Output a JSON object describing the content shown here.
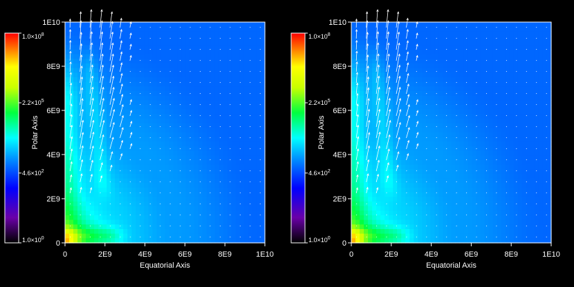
{
  "chart_data": [
    {
      "type": "heatmap",
      "title": "",
      "xlabel": "Equatorial Axis",
      "ylabel": "Polar Axis",
      "xlim": [
        0,
        10000000000
      ],
      "ylim": [
        0,
        10000000000
      ],
      "x_ticks": [
        {
          "value": 0,
          "label": "0"
        },
        {
          "value": 2000000000,
          "label": "2E9"
        },
        {
          "value": 4000000000,
          "label": "4E9"
        },
        {
          "value": 6000000000,
          "label": "6E9"
        },
        {
          "value": 8000000000,
          "label": "8E9"
        },
        {
          "value": 10000000000,
          "label": "1E10"
        }
      ],
      "y_ticks": [
        {
          "value": 0,
          "label": "0"
        },
        {
          "value": 2000000000,
          "label": "2E9"
        },
        {
          "value": 4000000000,
          "label": "4E9"
        },
        {
          "value": 6000000000,
          "label": "6E9"
        },
        {
          "value": 8000000000,
          "label": "8E9"
        },
        {
          "value": 10000000000,
          "label": "1E10"
        }
      ],
      "colorbar": {
        "scale": "log",
        "range": [
          1,
          100000000
        ],
        "ticks": [
          {
            "value": 100000000,
            "mant": "1.0×10",
            "exp": "8"
          },
          {
            "value": 220000,
            "mant": "2.2×10",
            "exp": "5"
          },
          {
            "value": 460,
            "mant": "4.6×10",
            "exp": "2"
          },
          {
            "value": 1,
            "mant": "1.0×10",
            "exp": "0"
          }
        ]
      },
      "vector_field": true,
      "grid": false
    },
    {
      "type": "heatmap",
      "title": "",
      "xlabel": "Equatorial Axis",
      "ylabel": "Polar Axis",
      "xlim": [
        0,
        10000000000
      ],
      "ylim": [
        0,
        10000000000
      ],
      "x_ticks": [
        {
          "value": 0,
          "label": "0"
        },
        {
          "value": 2000000000,
          "label": "2E9"
        },
        {
          "value": 4000000000,
          "label": "4E9"
        },
        {
          "value": 6000000000,
          "label": "6E9"
        },
        {
          "value": 8000000000,
          "label": "8E9"
        },
        {
          "value": 10000000000,
          "label": "1E10"
        }
      ],
      "y_ticks": [
        {
          "value": 0,
          "label": "0"
        },
        {
          "value": 2000000000,
          "label": "2E9"
        },
        {
          "value": 4000000000,
          "label": "4E9"
        },
        {
          "value": 6000000000,
          "label": "6E9"
        },
        {
          "value": 8000000000,
          "label": "8E9"
        },
        {
          "value": 10000000000,
          "label": "1E10"
        }
      ],
      "colorbar": {
        "scale": "log",
        "range": [
          1,
          100000000
        ],
        "ticks": [
          {
            "value": 100000000,
            "mant": "1.0×10",
            "exp": "8"
          },
          {
            "value": 220000,
            "mant": "2.2×10",
            "exp": "5"
          },
          {
            "value": 460,
            "mant": "4.6×10",
            "exp": "2"
          },
          {
            "value": 1,
            "mant": "1.0×10",
            "exp": "0"
          }
        ]
      },
      "vector_field": true,
      "grid": false
    }
  ]
}
